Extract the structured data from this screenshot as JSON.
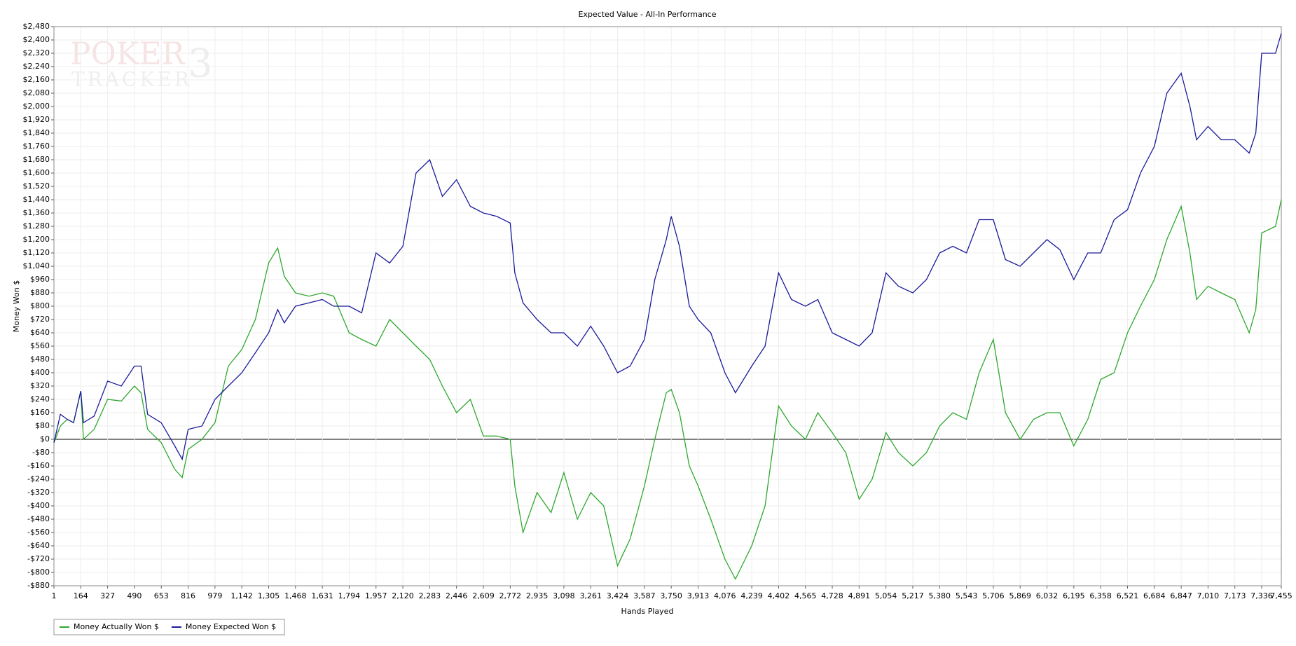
{
  "chart_data": {
    "type": "line",
    "title": "Expected Value - All-In Performance",
    "x_label": "Hands Played",
    "y_label": "Money Won $",
    "watermark": [
      "POKER",
      "TRACKER",
      "3"
    ],
    "xlim": [
      1,
      7455
    ],
    "ylim": [
      -880,
      2480
    ],
    "grid": true,
    "legend": "bottom-left",
    "xticks": [
      1,
      164,
      327,
      490,
      653,
      816,
      979,
      {
        "value": 1142,
        "label": "1,142"
      },
      {
        "value": 1305,
        "label": "1,305"
      },
      {
        "value": 1468,
        "label": "1,468"
      },
      {
        "value": 1631,
        "label": "1,631"
      },
      {
        "value": 1794,
        "label": "1,794"
      },
      {
        "value": 1957,
        "label": "1,957"
      },
      {
        "value": 2120,
        "label": "2,120"
      },
      {
        "value": 2283,
        "label": "2,283"
      },
      {
        "value": 2446,
        "label": "2,446"
      },
      {
        "value": 2609,
        "label": "2,609"
      },
      {
        "value": 2772,
        "label": "2,772"
      },
      {
        "value": 2935,
        "label": "2,935"
      },
      {
        "value": 3098,
        "label": "3,098"
      },
      {
        "value": 3261,
        "label": "3,261"
      },
      {
        "value": 3424,
        "label": "3,424"
      },
      {
        "value": 3587,
        "label": "3,587"
      },
      {
        "value": 3750,
        "label": "3,750"
      },
      {
        "value": 3913,
        "label": "3,913"
      },
      {
        "value": 4076,
        "label": "4,076"
      },
      {
        "value": 4239,
        "label": "4,239"
      },
      {
        "value": 4402,
        "label": "4,402"
      },
      {
        "value": 4565,
        "label": "4,565"
      },
      {
        "value": 4728,
        "label": "4,728"
      },
      {
        "value": 4891,
        "label": "4,891"
      },
      {
        "value": 5054,
        "label": "5,054"
      },
      {
        "value": 5217,
        "label": "5,217"
      },
      {
        "value": 5380,
        "label": "5,380"
      },
      {
        "value": 5543,
        "label": "5,543"
      },
      {
        "value": 5706,
        "label": "5,706"
      },
      {
        "value": 5869,
        "label": "5,869"
      },
      {
        "value": 6032,
        "label": "6,032"
      },
      {
        "value": 6195,
        "label": "6,195"
      },
      {
        "value": 6358,
        "label": "6,358"
      },
      {
        "value": 6521,
        "label": "6,521"
      },
      {
        "value": 6684,
        "label": "6,684"
      },
      {
        "value": 6847,
        "label": "6,847"
      },
      {
        "value": 7010,
        "label": "7,010"
      },
      {
        "value": 7173,
        "label": "7,173"
      },
      {
        "value": 7336,
        "label": "7,336"
      },
      {
        "value": 7455,
        "label": "7,455"
      }
    ],
    "yticks": [
      {
        "value": -880,
        "label": "-$880"
      },
      {
        "value": -800,
        "label": "-$800"
      },
      {
        "value": -720,
        "label": "-$720"
      },
      {
        "value": -640,
        "label": "-$640"
      },
      {
        "value": -560,
        "label": "-$560"
      },
      {
        "value": -480,
        "label": "-$480"
      },
      {
        "value": -400,
        "label": "-$400"
      },
      {
        "value": -320,
        "label": "-$320"
      },
      {
        "value": -240,
        "label": "-$240"
      },
      {
        "value": -160,
        "label": "-$160"
      },
      {
        "value": -80,
        "label": "-$80"
      },
      {
        "value": 0,
        "label": "$0"
      },
      {
        "value": 80,
        "label": "$80"
      },
      {
        "value": 160,
        "label": "$160"
      },
      {
        "value": 240,
        "label": "$240"
      },
      {
        "value": 320,
        "label": "$320"
      },
      {
        "value": 400,
        "label": "$400"
      },
      {
        "value": 480,
        "label": "$480"
      },
      {
        "value": 560,
        "label": "$560"
      },
      {
        "value": 640,
        "label": "$640"
      },
      {
        "value": 720,
        "label": "$720"
      },
      {
        "value": 800,
        "label": "$800"
      },
      {
        "value": 880,
        "label": "$880"
      },
      {
        "value": 960,
        "label": "$960"
      },
      {
        "value": 1040,
        "label": "$1,040"
      },
      {
        "value": 1120,
        "label": "$1,120"
      },
      {
        "value": 1200,
        "label": "$1,200"
      },
      {
        "value": 1280,
        "label": "$1,280"
      },
      {
        "value": 1360,
        "label": "$1,360"
      },
      {
        "value": 1440,
        "label": "$1,440"
      },
      {
        "value": 1520,
        "label": "$1,520"
      },
      {
        "value": 1600,
        "label": "$1,600"
      },
      {
        "value": 1680,
        "label": "$1,680"
      },
      {
        "value": 1760,
        "label": "$1,760"
      },
      {
        "value": 1840,
        "label": "$1,840"
      },
      {
        "value": 1920,
        "label": "$1,920"
      },
      {
        "value": 2000,
        "label": "$2,000"
      },
      {
        "value": 2080,
        "label": "$2,080"
      },
      {
        "value": 2160,
        "label": "$2,160"
      },
      {
        "value": 2240,
        "label": "$2,240"
      },
      {
        "value": 2320,
        "label": "$2,320"
      },
      {
        "value": 2400,
        "label": "$2,400"
      },
      {
        "value": 2480,
        "label": "$2,480"
      }
    ],
    "x": [
      1,
      40,
      82,
      120,
      164,
      180,
      245,
      327,
      410,
      490,
      530,
      570,
      653,
      735,
      780,
      816,
      900,
      979,
      1060,
      1142,
      1224,
      1305,
      1360,
      1400,
      1468,
      1550,
      1631,
      1700,
      1794,
      1870,
      1957,
      2040,
      2120,
      2200,
      2283,
      2360,
      2446,
      2530,
      2609,
      2690,
      2772,
      2800,
      2850,
      2935,
      3020,
      3098,
      3180,
      3261,
      3340,
      3424,
      3500,
      3587,
      3650,
      3720,
      3750,
      3800,
      3860,
      3913,
      3990,
      4076,
      4140,
      4239,
      4320,
      4402,
      4480,
      4565,
      4640,
      4728,
      4810,
      4891,
      4970,
      5054,
      5130,
      5217,
      5300,
      5380,
      5460,
      5543,
      5620,
      5706,
      5780,
      5869,
      5950,
      6032,
      6110,
      6195,
      6280,
      6358,
      6440,
      6521,
      6600,
      6684,
      6760,
      6847,
      6900,
      6940,
      7010,
      7090,
      7173,
      7260,
      7300,
      7336,
      7420,
      7455
    ],
    "series": [
      {
        "name": "Money Actually Won $",
        "color": "#2ea82e",
        "values": [
          -20,
          80,
          120,
          100,
          290,
          0,
          60,
          240,
          230,
          320,
          280,
          60,
          -20,
          -180,
          -230,
          -60,
          0,
          100,
          440,
          540,
          720,
          1060,
          1150,
          980,
          880,
          860,
          880,
          860,
          640,
          600,
          560,
          720,
          640,
          560,
          480,
          320,
          160,
          240,
          20,
          20,
          0,
          -280,
          -560,
          -320,
          -440,
          -200,
          -480,
          -320,
          -400,
          -760,
          -600,
          -280,
          0,
          280,
          300,
          160,
          -160,
          -280,
          -480,
          -720,
          -840,
          -640,
          -400,
          200,
          80,
          0,
          160,
          40,
          -80,
          -360,
          -240,
          40,
          -80,
          -160,
          -80,
          80,
          160,
          120,
          400,
          600,
          160,
          0,
          120,
          160,
          160,
          -40,
          120,
          360,
          400,
          640,
          800,
          960,
          1200,
          1400,
          1120,
          840,
          920,
          880,
          840,
          640,
          780,
          1240,
          1280,
          1440
        ]
      },
      {
        "name": "Money Expected Won $",
        "color": "#1a1a99",
        "values": [
          -20,
          150,
          120,
          100,
          290,
          100,
          140,
          350,
          320,
          440,
          440,
          150,
          100,
          -40,
          -120,
          60,
          80,
          240,
          320,
          400,
          520,
          640,
          780,
          700,
          800,
          820,
          840,
          800,
          800,
          760,
          1120,
          1060,
          1160,
          1600,
          1680,
          1460,
          1560,
          1400,
          1360,
          1340,
          1300,
          1000,
          820,
          720,
          640,
          640,
          560,
          680,
          560,
          400,
          440,
          600,
          960,
          1200,
          1340,
          1160,
          800,
          720,
          640,
          400,
          280,
          440,
          560,
          1000,
          840,
          800,
          840,
          640,
          600,
          560,
          640,
          1000,
          920,
          880,
          960,
          1120,
          1160,
          1120,
          1320,
          1320,
          1080,
          1040,
          1120,
          1200,
          1140,
          960,
          1120,
          1120,
          1320,
          1380,
          1600,
          1760,
          2080,
          2200,
          2000,
          1800,
          1880,
          1800,
          1800,
          1720,
          1840,
          2320,
          2320,
          2440
        ]
      }
    ]
  }
}
